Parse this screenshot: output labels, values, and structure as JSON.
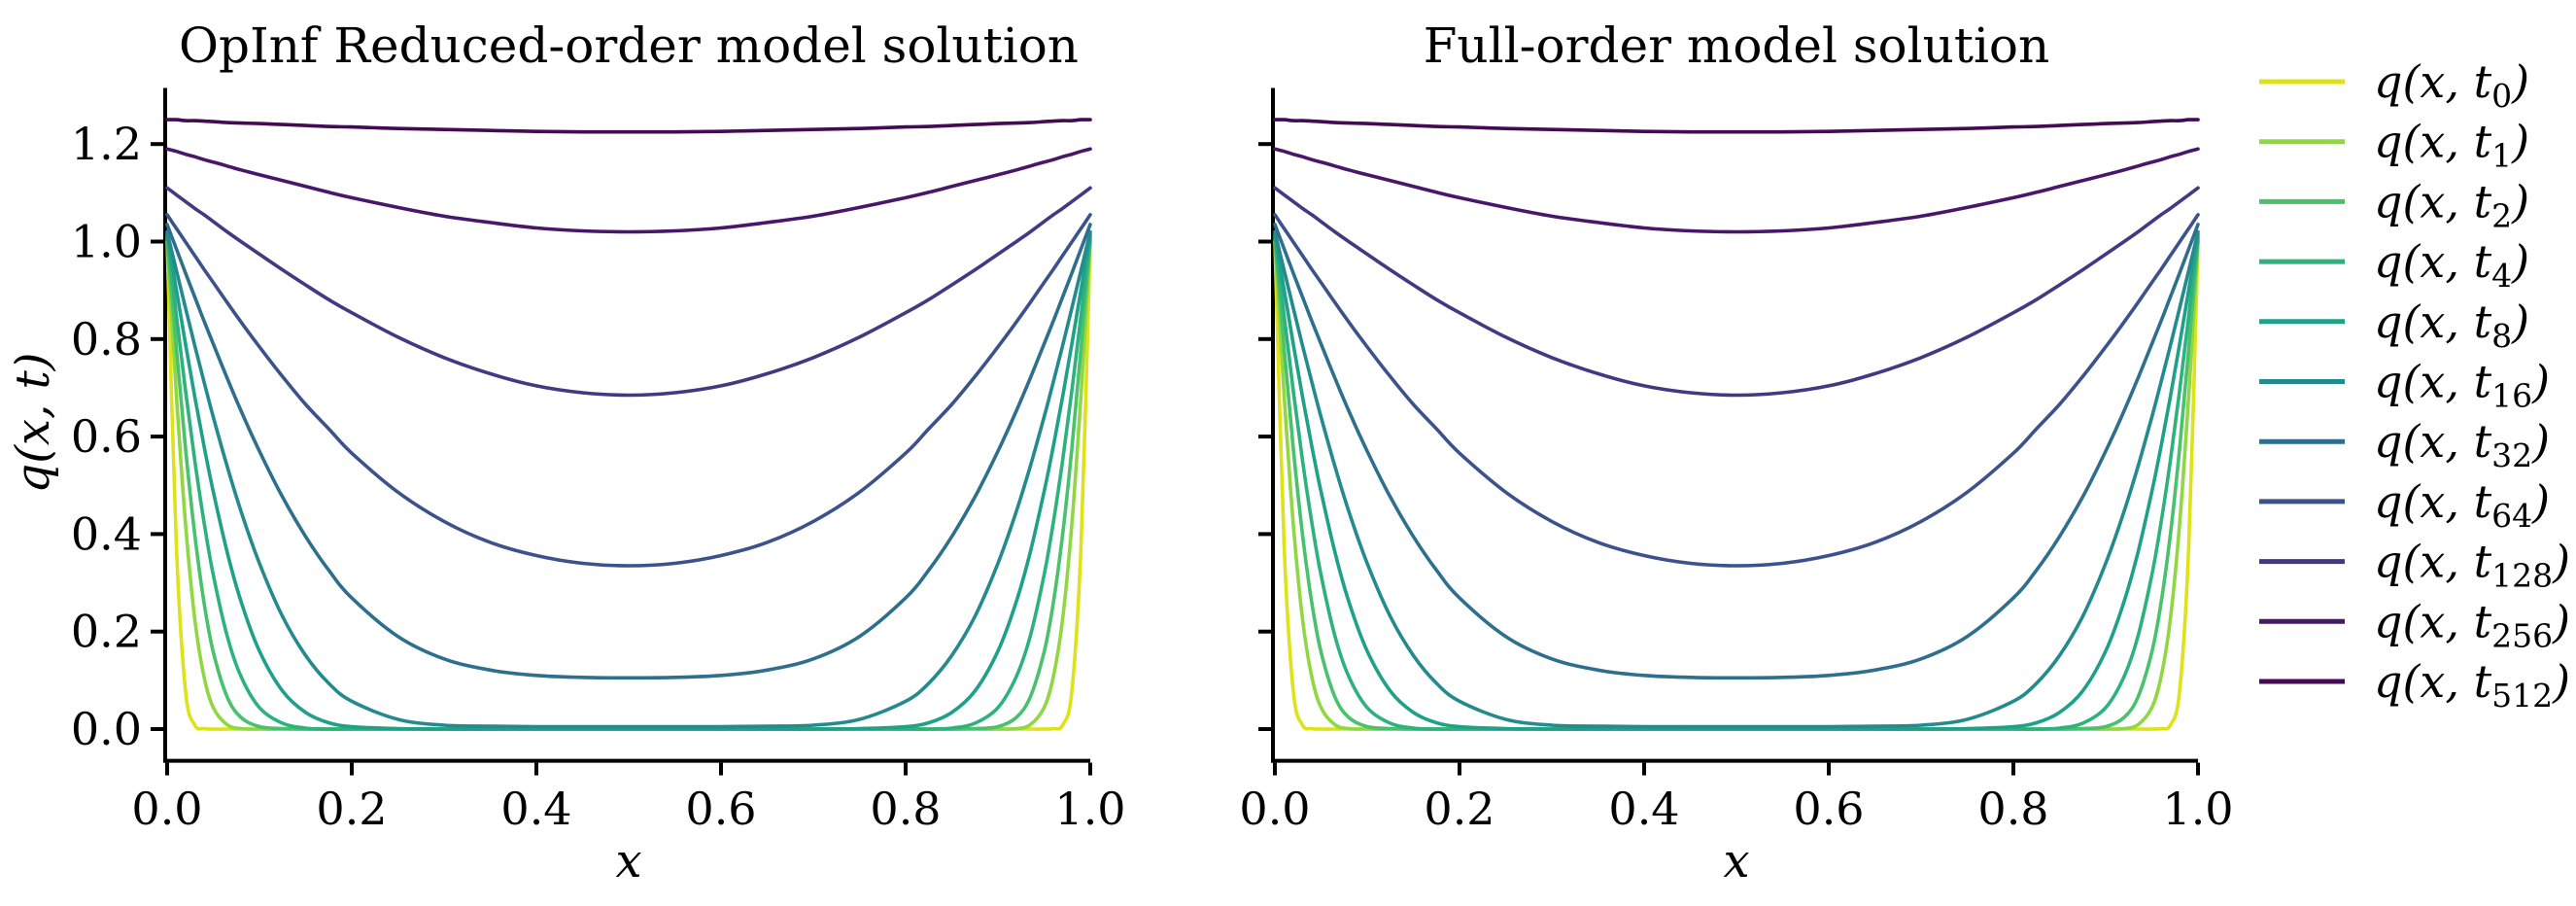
{
  "figure": {
    "background": "#ffffff",
    "text_color": "#000000",
    "spine_color": "#000000"
  },
  "chart_data": {
    "type": "line",
    "panels": [
      {
        "title": "OpInf Reduced-order model solution",
        "xlabel": "x",
        "ylabel": "q(x, t)"
      },
      {
        "title": "Full-order model solution",
        "xlabel": "x",
        "ylabel": ""
      }
    ],
    "xlim": [
      0,
      1
    ],
    "ylim": [
      -0.065,
      1.315
    ],
    "grid": false,
    "legend_position": "right-outside",
    "xticks": {
      "values": [
        0,
        0.2,
        0.4,
        0.6,
        0.8,
        1.0
      ],
      "labels": [
        "0.0",
        "0.2",
        "0.4",
        "0.6",
        "0.8",
        "1.0"
      ]
    },
    "yticks": {
      "values": [
        0,
        0.2,
        0.4,
        0.6,
        0.8,
        1.0,
        1.2
      ],
      "labels": [
        "0.0",
        "0.2",
        "0.4",
        "0.6",
        "0.8",
        "1.0",
        "1.2"
      ]
    },
    "x": [
      0,
      0.01,
      0.02,
      0.03,
      0.04,
      0.05,
      0.065,
      0.08,
      0.1,
      0.125,
      0.15,
      0.175,
      0.2,
      0.25,
      0.3,
      0.35,
      0.4,
      0.45,
      0.5,
      0.55,
      0.6,
      0.65,
      0.7,
      0.75,
      0.8,
      0.825,
      0.85,
      0.875,
      0.9,
      0.92,
      0.935,
      0.95,
      0.96,
      0.97,
      0.98,
      0.99,
      1.0
    ],
    "series": [
      {
        "name": "q(x, t_0)",
        "t_subscript": "0",
        "color": "#dde318",
        "y": [
          1.0,
          0.377,
          0.077,
          0.008,
          0.001,
          0,
          0,
          0,
          0,
          0,
          0,
          0,
          0,
          0,
          0,
          0,
          0,
          0,
          0,
          0,
          0,
          0,
          0,
          0,
          0,
          0,
          0,
          0,
          0,
          0,
          0,
          0,
          0.001,
          0.008,
          0.077,
          0.377,
          1.0
        ]
      },
      {
        "name": "q(x, t_1)",
        "t_subscript": "1",
        "color": "#90d743",
        "y": [
          1.0,
          0.686,
          0.419,
          0.225,
          0.107,
          0.044,
          0.009,
          0.001,
          0,
          0,
          0,
          0,
          0,
          0,
          0,
          0,
          0,
          0,
          0,
          0,
          0,
          0,
          0,
          0,
          0,
          0,
          0,
          0,
          0,
          0.001,
          0.009,
          0.044,
          0.107,
          0.225,
          0.419,
          0.686,
          1.0
        ]
      },
      {
        "name": "q(x, t_2)",
        "t_subscript": "2",
        "color": "#4ac16d",
        "y": [
          1.005,
          0.781,
          0.574,
          0.398,
          0.259,
          0.158,
          0.066,
          0.024,
          0.005,
          0.001,
          0,
          0,
          0,
          0,
          0,
          0,
          0,
          0,
          0,
          0,
          0,
          0,
          0,
          0,
          0,
          0,
          0,
          0.001,
          0.005,
          0.024,
          0.066,
          0.158,
          0.259,
          0.398,
          0.574,
          0.781,
          1.005
        ]
      },
      {
        "name": "q(x, t_4)",
        "t_subscript": "4",
        "color": "#2db27d",
        "y": [
          1.01,
          0.848,
          0.693,
          0.55,
          0.424,
          0.316,
          0.191,
          0.108,
          0.044,
          0.012,
          0.002,
          0,
          0,
          0,
          0,
          0,
          0,
          0,
          0,
          0,
          0,
          0,
          0,
          0,
          0,
          0,
          0.002,
          0.012,
          0.044,
          0.108,
          0.191,
          0.316,
          0.424,
          0.55,
          0.693,
          0.848,
          1.01
        ]
      },
      {
        "name": "q(x, t_8)",
        "t_subscript": "8",
        "color": "#1fa088",
        "y": [
          1.015,
          0.901,
          0.789,
          0.681,
          0.58,
          0.487,
          0.363,
          0.262,
          0.16,
          0.078,
          0.034,
          0.013,
          0.005,
          0.001,
          0,
          0,
          0,
          0,
          0,
          0,
          0,
          0,
          0,
          0.001,
          0.005,
          0.013,
          0.034,
          0.078,
          0.16,
          0.262,
          0.363,
          0.487,
          0.58,
          0.681,
          0.789,
          0.901,
          1.015
        ]
      },
      {
        "name": "q(x, t_16)",
        "t_subscript": "16",
        "color": "#238a8d",
        "y": [
          1.02,
          0.941,
          0.863,
          0.786,
          0.712,
          0.64,
          0.539,
          0.447,
          0.34,
          0.231,
          0.151,
          0.094,
          0.057,
          0.02,
          0.008,
          0.006,
          0.005,
          0.005,
          0.005,
          0.005,
          0.005,
          0.006,
          0.008,
          0.02,
          0.057,
          0.094,
          0.151,
          0.231,
          0.34,
          0.447,
          0.539,
          0.64,
          0.712,
          0.786,
          0.863,
          0.941,
          1.02
        ]
      },
      {
        "name": "q(x, t_32)",
        "t_subscript": "32",
        "color": "#2e6f8e",
        "y": [
          1.035,
          0.985,
          0.935,
          0.886,
          0.837,
          0.79,
          0.72,
          0.653,
          0.57,
          0.476,
          0.395,
          0.326,
          0.269,
          0.19,
          0.144,
          0.121,
          0.11,
          0.106,
          0.105,
          0.106,
          0.11,
          0.121,
          0.144,
          0.19,
          0.269,
          0.326,
          0.395,
          0.476,
          0.57,
          0.653,
          0.72,
          0.79,
          0.837,
          0.886,
          0.935,
          0.985,
          1.035
        ]
      },
      {
        "name": "q(x, t_64)",
        "t_subscript": "64",
        "color": "#3b528b",
        "y": [
          1.055,
          1.027,
          0.999,
          0.971,
          0.943,
          0.916,
          0.875,
          0.835,
          0.784,
          0.723,
          0.666,
          0.616,
          0.566,
          0.486,
          0.426,
          0.383,
          0.356,
          0.34,
          0.335,
          0.34,
          0.356,
          0.383,
          0.426,
          0.486,
          0.566,
          0.616,
          0.666,
          0.723,
          0.784,
          0.835,
          0.875,
          0.916,
          0.943,
          0.971,
          0.999,
          1.027,
          1.055
        ]
      },
      {
        "name": "q(x, t_128)",
        "t_subscript": "128",
        "color": "#453882",
        "y": [
          1.11,
          1.096,
          1.082,
          1.068,
          1.055,
          1.041,
          1.02,
          1.0,
          0.974,
          0.942,
          0.911,
          0.881,
          0.854,
          0.804,
          0.762,
          0.729,
          0.704,
          0.69,
          0.685,
          0.69,
          0.704,
          0.729,
          0.762,
          0.804,
          0.854,
          0.881,
          0.911,
          0.942,
          0.974,
          1.0,
          1.02,
          1.041,
          1.055,
          1.068,
          1.082,
          1.096,
          1.11
        ]
      },
      {
        "name": "q(x, t_256)",
        "t_subscript": "256",
        "color": "#481769",
        "y": [
          1.19,
          1.185,
          1.179,
          1.174,
          1.168,
          1.163,
          1.155,
          1.147,
          1.137,
          1.125,
          1.113,
          1.101,
          1.09,
          1.07,
          1.052,
          1.039,
          1.028,
          1.022,
          1.02,
          1.022,
          1.028,
          1.039,
          1.052,
          1.07,
          1.09,
          1.101,
          1.113,
          1.125,
          1.137,
          1.147,
          1.155,
          1.163,
          1.168,
          1.174,
          1.179,
          1.185,
          1.19
        ]
      },
      {
        "name": "q(x, t_512)",
        "t_subscript": "512",
        "color": "#440a54",
        "y": [
          1.25,
          1.25,
          1.248,
          1.248,
          1.247,
          1.246,
          1.244,
          1.243,
          1.242,
          1.24,
          1.238,
          1.236,
          1.235,
          1.232,
          1.23,
          1.228,
          1.226,
          1.225,
          1.225,
          1.225,
          1.226,
          1.228,
          1.23,
          1.232,
          1.235,
          1.236,
          1.238,
          1.24,
          1.242,
          1.243,
          1.244,
          1.246,
          1.247,
          1.248,
          1.248,
          1.25,
          1.25
        ]
      }
    ],
    "legend_label_prefix": "q(x, t",
    "legend_label_suffix": ")"
  }
}
